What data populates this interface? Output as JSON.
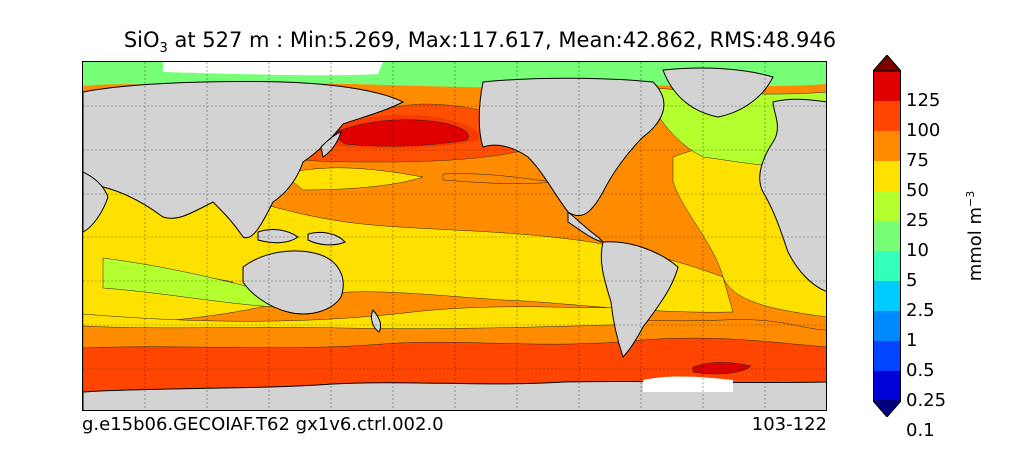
{
  "title": {
    "species": "SiO",
    "subscript": "3",
    "rest": " at 527 m : Min:5.269, Max:117.617, Mean:42.862, RMS:48.946"
  },
  "footer": {
    "case_name": "g.e15b06.GECOIAF.T62 gx1v6.ctrl.002.0",
    "years": "103-122"
  },
  "colorbar": {
    "units_base": "mmol m",
    "units_exp": "−3",
    "levels": [
      "125",
      "100",
      "75",
      "50",
      "25",
      "10",
      "5",
      "2.5",
      "1",
      "0.5",
      "0.25",
      "0.1"
    ],
    "colors": [
      "#000080",
      "#0000d8",
      "#0044ff",
      "#0088ff",
      "#00ccff",
      "#33ffbb",
      "#77ff77",
      "#b4ff2e",
      "#ffe100",
      "#ff8c00",
      "#ff4500",
      "#e00000",
      "#7a0000"
    ]
  },
  "map": {
    "land_color": "#d3d3d3",
    "ocean_fill": "#ff8c00",
    "grid": true
  }
}
